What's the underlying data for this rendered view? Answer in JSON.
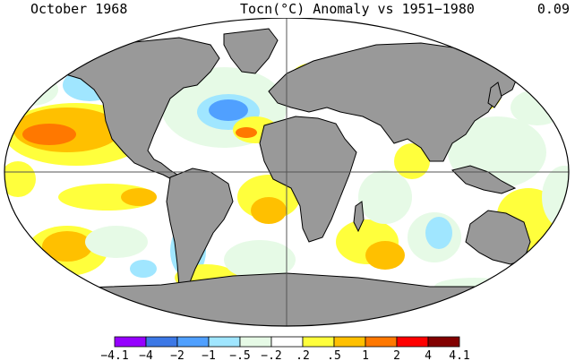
{
  "header": {
    "left": "October 1968",
    "center": "Tocn(°C) Anomaly vs 1951−1980",
    "right": "0.09"
  },
  "colors": {
    "land": "#999999",
    "ocean_neutral": "#ffffff",
    "pale_green": "#e6fae6",
    "light_blue": "#a0e6ff",
    "blue": "#50a0ff",
    "yellow": "#ffff3c",
    "gold": "#ffc000",
    "orange": "#ff7800"
  },
  "colorbar": {
    "labels": [
      "−4.1",
      "−4",
      "−2",
      "−1",
      "−.5",
      "−.2",
      ".2",
      ".5",
      "1",
      "2",
      "4",
      "4.1"
    ],
    "colors": [
      "#9600ff",
      "#3c78e6",
      "#50a0ff",
      "#a0e6ff",
      "#e6fae6",
      "#ffffff",
      "#ffff3c",
      "#ffc000",
      "#ff7800",
      "#ff0000",
      "#820000"
    ]
  },
  "map": {
    "projection": "Robinson-like ellipse",
    "center_lines": true
  }
}
